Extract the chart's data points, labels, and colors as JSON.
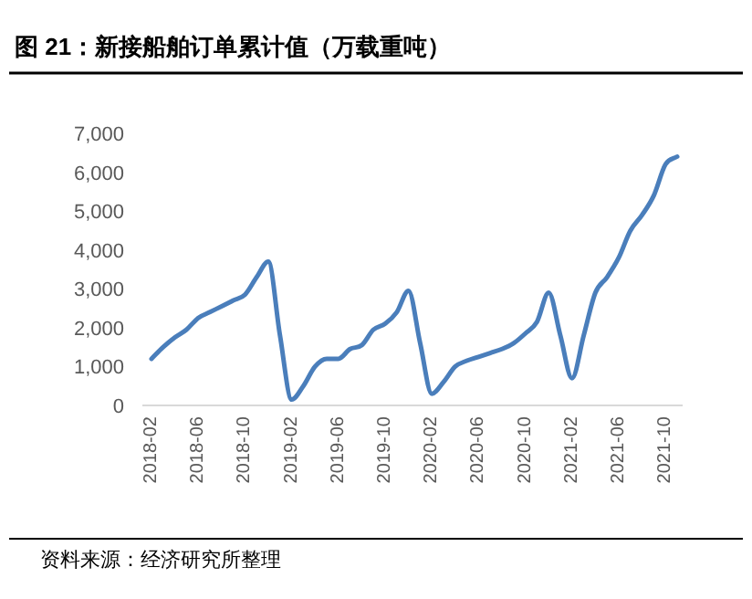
{
  "chart_data": {
    "type": "line",
    "title": "图 21：新接船舶订单累计值（万载重吨）",
    "annotations": [
      "资料来源：经济研究所整理"
    ],
    "categories": [
      "2018-02",
      null,
      null,
      null,
      "2018-06",
      null,
      null,
      null,
      "2018-10",
      null,
      null,
      null,
      "2019-02",
      null,
      null,
      null,
      "2019-06",
      null,
      null,
      null,
      "2019-10",
      null,
      null,
      null,
      "2020-02",
      null,
      null,
      null,
      "2020-06",
      null,
      null,
      null,
      "2020-10",
      null,
      null,
      null,
      "2021-02",
      null,
      null,
      null,
      "2021-06",
      null,
      null,
      null,
      "2021-10",
      null
    ],
    "values": [
      1200,
      1500,
      1750,
      1950,
      2250,
      2400,
      2550,
      2700,
      2850,
      3300,
      3700,
      1800,
      150,
      500,
      1000,
      1200,
      1200,
      1450,
      1550,
      1950,
      2100,
      2400,
      2950,
      1600,
      300,
      600,
      1000,
      1150,
      1250,
      1350,
      1450,
      1600,
      1850,
      2150,
      2900,
      1800,
      700,
      1800,
      2900,
      3300,
      3800,
      4500,
      4900,
      5400,
      6200,
      6400
    ],
    "color": "#4a7ebb",
    "ylim": [
      0,
      7000
    ],
    "yticks": [
      0,
      {
        "value": 1000,
        "label": "1,000"
      },
      {
        "value": 2000,
        "label": "2,000"
      },
      {
        "value": 3000,
        "label": "3,000"
      },
      {
        "value": 4000,
        "label": "4,000"
      },
      {
        "value": 5000,
        "label": "5,000"
      },
      {
        "value": 6000,
        "label": "6,000"
      },
      {
        "value": 7000,
        "label": "7,000"
      }
    ],
    "grid": false
  }
}
